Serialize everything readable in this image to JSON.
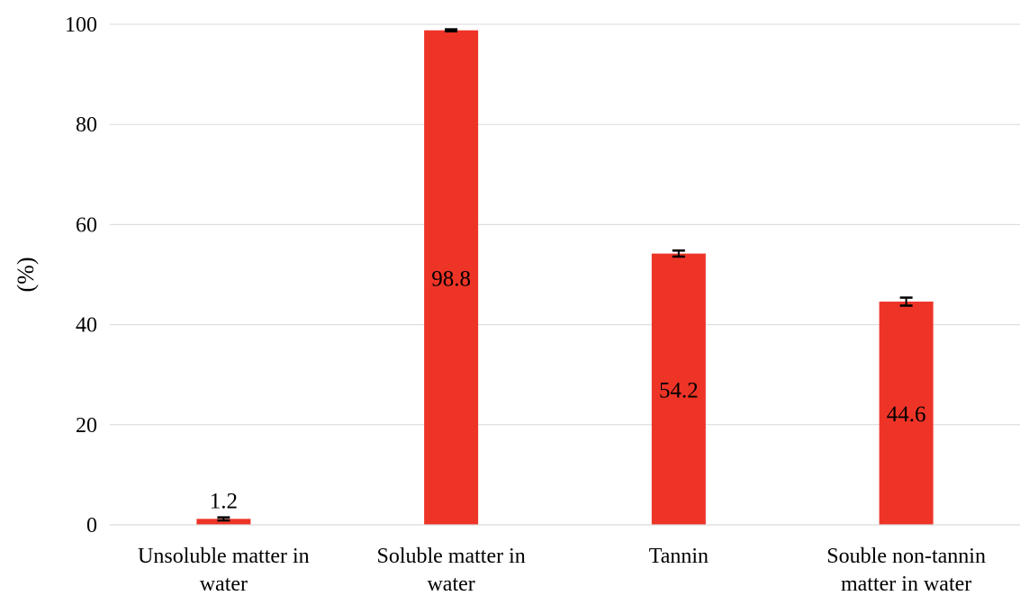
{
  "chart_data": {
    "type": "bar",
    "title": "",
    "xlabel": "",
    "ylabel": "(%)",
    "ylim": [
      0,
      100
    ],
    "yticks": [
      0,
      20,
      40,
      60,
      80,
      100
    ],
    "grid": "horizontal",
    "categories": [
      [
        "Unsoluble matter in",
        "water"
      ],
      [
        "Soluble matter in",
        "water"
      ],
      [
        "Tannin"
      ],
      [
        "Souble non-tannin",
        "matter in water"
      ]
    ],
    "values": [
      1.2,
      98.8,
      54.2,
      44.6
    ],
    "errors": [
      0.3,
      0.2,
      0.6,
      0.8
    ],
    "data_labels": [
      "1.2",
      "98.8",
      "54.2",
      "44.6"
    ],
    "bar_color": "#ee3427",
    "grid_color": "#d9d9d9"
  }
}
